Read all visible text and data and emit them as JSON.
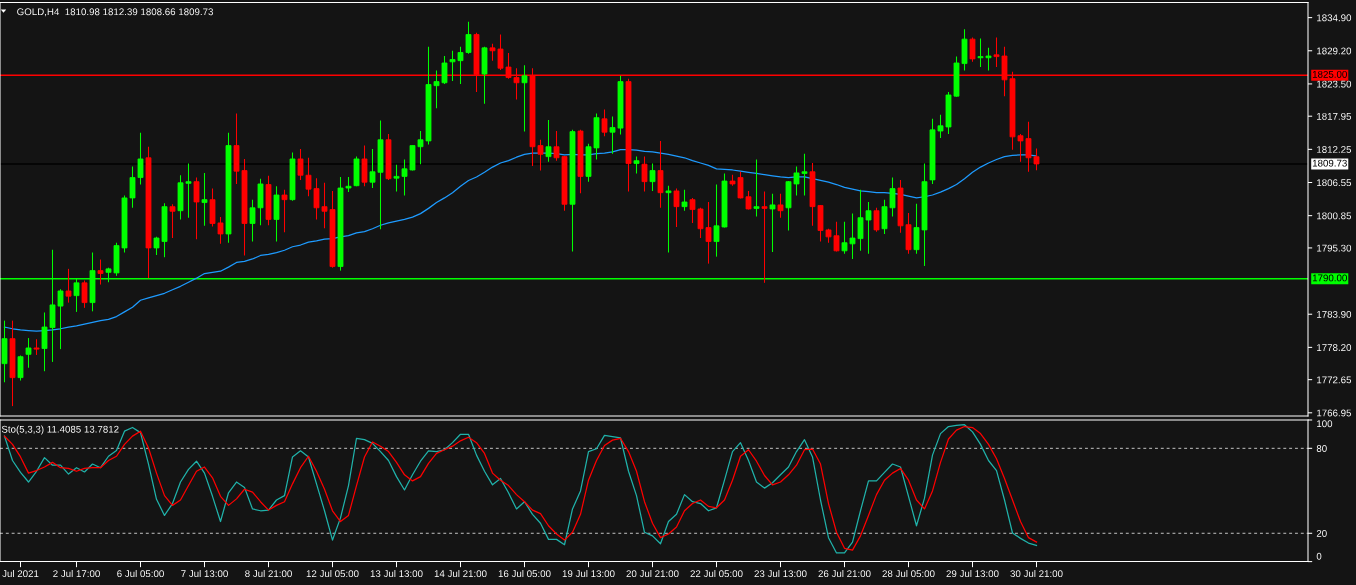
{
  "chart_data": [
    {
      "type": "candlestick",
      "title": "GOLD,H4  1810.98 1812.39 1808.66 1809.73",
      "categories": [
        null,
        null,
        null,
        null,
        null,
        null,
        null,
        null,
        null,
        null,
        null,
        null,
        null,
        null,
        null,
        null,
        null,
        null,
        null,
        null,
        null,
        null,
        null,
        null,
        null,
        null,
        null,
        null,
        null,
        null,
        null,
        null,
        null,
        null,
        null,
        null,
        null,
        null,
        null,
        null,
        null,
        null,
        null,
        null,
        null,
        null,
        null,
        null,
        null,
        null,
        null,
        null,
        null,
        null,
        null,
        null,
        null,
        null,
        null,
        null,
        null,
        null,
        null,
        null,
        null,
        null,
        null,
        null,
        null,
        null,
        null,
        null,
        null,
        null,
        null,
        null,
        null,
        null,
        null,
        null,
        null,
        null,
        null,
        null,
        null,
        null,
        null,
        null,
        null,
        null,
        null,
        null,
        null,
        null,
        null,
        null,
        null,
        null,
        null,
        null,
        null,
        null,
        null,
        null,
        null,
        null,
        null,
        null,
        null,
        null,
        null,
        null,
        null,
        null,
        null,
        null,
        null,
        null,
        null,
        null,
        null,
        null,
        null,
        null,
        null,
        null,
        null,
        null,
        null,
        null
      ],
      "ohlc": [
        [
          1775.4,
          1782.8,
          1772.2,
          1779.7
        ],
        [
          1779.7,
          1782.8,
          1768.1,
          1773.0
        ],
        [
          1773.0,
          1776.8,
          1772.5,
          1776.6
        ],
        [
          1777.0,
          1779.8,
          1774.7,
          1778.1
        ],
        [
          1778.1,
          1779.6,
          1776.9,
          1777.9
        ],
        [
          1778.0,
          1784.2,
          1774.1,
          1781.7
        ],
        [
          1781.6,
          1795.0,
          1775.7,
          1785.5
        ],
        [
          1785.3,
          1788.2,
          1777.9,
          1787.9
        ],
        [
          1787.9,
          1791.7,
          1785.9,
          1787.0
        ],
        [
          1787.1,
          1790.1,
          1784.3,
          1789.3
        ],
        [
          1789.3,
          1789.7,
          1785.0,
          1785.9
        ],
        [
          1785.9,
          1794.5,
          1784.4,
          1791.4
        ],
        [
          1791.4,
          1793.3,
          1789.0,
          1790.9
        ],
        [
          1791.1,
          1791.9,
          1789.4,
          1791.7
        ],
        [
          1791.0,
          1796.2,
          1790.5,
          1795.7
        ],
        [
          1795.3,
          1804.3,
          1794.5,
          1803.9
        ],
        [
          1803.9,
          1809.3,
          1802.2,
          1807.4
        ],
        [
          1807.4,
          1815.1,
          1806.2,
          1810.6
        ],
        [
          1810.8,
          1812.7,
          1790.1,
          1795.3
        ],
        [
          1795.3,
          1797.2,
          1794.1,
          1797.0
        ],
        [
          1796.4,
          1803.0,
          1793.7,
          1802.4
        ],
        [
          1802.4,
          1802.8,
          1797.0,
          1801.6
        ],
        [
          1801.7,
          1807.8,
          1800.2,
          1806.5
        ],
        [
          1806.4,
          1809.8,
          1800.5,
          1806.7
        ],
        [
          1806.7,
          1807.4,
          1796.8,
          1803.2
        ],
        [
          1803.1,
          1808.2,
          1799.1,
          1803.6
        ],
        [
          1803.6,
          1805.5,
          1799.0,
          1799.5
        ],
        [
          1799.6,
          1800.6,
          1796.0,
          1797.7
        ],
        [
          1797.7,
          1815.1,
          1796.2,
          1812.9
        ],
        [
          1812.9,
          1818.4,
          1806.3,
          1808.5
        ],
        [
          1808.6,
          1810.6,
          1794.0,
          1799.5
        ],
        [
          1799.5,
          1803.6,
          1796.4,
          1802.2
        ],
        [
          1802.2,
          1807.2,
          1799.2,
          1806.3
        ],
        [
          1806.2,
          1807.7,
          1799.2,
          1800.2
        ],
        [
          1800.2,
          1805.9,
          1796.4,
          1804.4
        ],
        [
          1804.4,
          1805.3,
          1798.0,
          1803.6
        ],
        [
          1803.6,
          1811.7,
          1803.4,
          1810.6
        ],
        [
          1810.6,
          1812.3,
          1807.0,
          1807.8
        ],
        [
          1807.8,
          1810.8,
          1804.2,
          1805.4
        ],
        [
          1805.5,
          1807.3,
          1800.2,
          1802.2
        ],
        [
          1802.4,
          1806.5,
          1798.7,
          1801.6
        ],
        [
          1801.9,
          1805.1,
          1791.9,
          1792.1
        ],
        [
          1792.1,
          1807.5,
          1791.4,
          1805.6
        ],
        [
          1805.6,
          1807.5,
          1804.9,
          1805.9
        ],
        [
          1806.0,
          1811.0,
          1805.9,
          1810.6
        ],
        [
          1810.6,
          1812.9,
          1805.9,
          1806.6
        ],
        [
          1806.6,
          1812.3,
          1805.6,
          1808.4
        ],
        [
          1808.3,
          1817.2,
          1798.5,
          1813.9
        ],
        [
          1813.9,
          1814.9,
          1807.0,
          1807.2
        ],
        [
          1807.3,
          1809.6,
          1805.0,
          1807.6
        ],
        [
          1807.6,
          1810.5,
          1804.3,
          1808.9
        ],
        [
          1808.7,
          1812.9,
          1808.6,
          1812.9
        ],
        [
          1812.7,
          1815.4,
          1809.7,
          1813.9
        ],
        [
          1813.7,
          1829.9,
          1813.1,
          1823.4
        ],
        [
          1823.2,
          1825.8,
          1819.3,
          1823.9
        ],
        [
          1823.7,
          1828.3,
          1823.5,
          1827.1
        ],
        [
          1827.3,
          1829.2,
          1824.0,
          1827.7
        ],
        [
          1827.5,
          1829.9,
          1823.5,
          1828.9
        ],
        [
          1828.9,
          1834.2,
          1828.7,
          1832.0
        ],
        [
          1832.0,
          1832.3,
          1822.1,
          1825.1
        ],
        [
          1825.2,
          1829.9,
          1820.1,
          1829.7
        ],
        [
          1829.7,
          1830.4,
          1827.5,
          1829.2
        ],
        [
          1829.5,
          1832.0,
          1825.9,
          1826.2
        ],
        [
          1826.4,
          1828.8,
          1824.4,
          1824.6
        ],
        [
          1824.6,
          1826.2,
          1820.8,
          1823.7
        ],
        [
          1823.7,
          1826.7,
          1815.3,
          1824.9
        ],
        [
          1824.9,
          1826.2,
          1809.4,
          1812.7
        ],
        [
          1812.9,
          1813.9,
          1808.6,
          1811.4
        ],
        [
          1811.0,
          1817.3,
          1810.1,
          1812.7
        ],
        [
          1812.7,
          1815.4,
          1810.3,
          1810.8
        ],
        [
          1811.0,
          1811.1,
          1801.7,
          1802.8
        ],
        [
          1802.8,
          1815.6,
          1794.7,
          1815.3
        ],
        [
          1815.4,
          1815.6,
          1804.7,
          1807.6
        ],
        [
          1807.6,
          1813.2,
          1806.7,
          1812.7
        ],
        [
          1812.5,
          1818.4,
          1810.5,
          1817.7
        ],
        [
          1817.5,
          1819.1,
          1814.5,
          1815.2
        ],
        [
          1815.2,
          1817.9,
          1811.5,
          1816.0
        ],
        [
          1815.9,
          1824.9,
          1814.8,
          1823.9
        ],
        [
          1823.9,
          1824.4,
          1805.0,
          1809.8
        ],
        [
          1809.8,
          1811.0,
          1808.1,
          1810.3
        ],
        [
          1809.7,
          1811.0,
          1805.0,
          1806.7
        ],
        [
          1806.7,
          1809.8,
          1805.1,
          1808.6
        ],
        [
          1808.6,
          1813.7,
          1802.2,
          1804.8
        ],
        [
          1804.8,
          1806.0,
          1794.5,
          1805.1
        ],
        [
          1805.1,
          1805.5,
          1798.9,
          1802.4
        ],
        [
          1802.4,
          1805.3,
          1801.7,
          1803.2
        ],
        [
          1803.6,
          1803.9,
          1799.6,
          1801.9
        ],
        [
          1802.0,
          1802.2,
          1797.0,
          1798.6
        ],
        [
          1798.8,
          1803.2,
          1792.6,
          1796.4
        ],
        [
          1796.4,
          1806.2,
          1793.8,
          1799.1
        ],
        [
          1798.9,
          1808.1,
          1798.8,
          1806.8
        ],
        [
          1806.8,
          1807.9,
          1806.0,
          1806.3
        ],
        [
          1807.4,
          1808.4,
          1803.8,
          1803.9
        ],
        [
          1804.1,
          1805.1,
          1801.9,
          1802.0
        ],
        [
          1802.1,
          1810.5,
          1800.7,
          1802.4
        ],
        [
          1802.4,
          1805.0,
          1789.3,
          1802.1
        ],
        [
          1802.0,
          1804.6,
          1794.6,
          1802.7
        ],
        [
          1802.7,
          1804.6,
          1800.5,
          1801.7
        ],
        [
          1802.2,
          1806.8,
          1798.3,
          1806.7
        ],
        [
          1806.3,
          1809.3,
          1804.3,
          1808.2
        ],
        [
          1808.1,
          1811.5,
          1804.3,
          1808.4
        ],
        [
          1808.4,
          1809.9,
          1799.1,
          1802.4
        ],
        [
          1802.6,
          1802.7,
          1796.4,
          1798.3
        ],
        [
          1798.4,
          1798.6,
          1796.2,
          1797.2
        ],
        [
          1797.4,
          1799.8,
          1794.7,
          1794.8
        ],
        [
          1794.8,
          1799.8,
          1794.3,
          1796.2
        ],
        [
          1796.0,
          1801.2,
          1793.4,
          1797.0
        ],
        [
          1796.9,
          1805.3,
          1794.8,
          1800.5
        ],
        [
          1800.1,
          1803.2,
          1794.3,
          1801.7
        ],
        [
          1801.7,
          1802.2,
          1798.1,
          1798.4
        ],
        [
          1798.6,
          1803.6,
          1797.7,
          1802.4
        ],
        [
          1802.2,
          1807.4,
          1800.7,
          1805.5
        ],
        [
          1805.6,
          1807.0,
          1797.9,
          1799.1
        ],
        [
          1799.3,
          1801.3,
          1794.3,
          1795.0
        ],
        [
          1795.0,
          1802.9,
          1794.3,
          1798.8
        ],
        [
          1798.4,
          1809.8,
          1792.2,
          1806.7
        ],
        [
          1807.0,
          1817.5,
          1806.3,
          1815.6
        ],
        [
          1815.4,
          1818.2,
          1814.2,
          1816.3
        ],
        [
          1816.1,
          1822.1,
          1814.9,
          1821.6
        ],
        [
          1821.4,
          1828.2,
          1821.3,
          1827.1
        ],
        [
          1827.0,
          1832.9,
          1825.8,
          1831.2
        ],
        [
          1831.2,
          1831.5,
          1827.3,
          1827.8
        ],
        [
          1828.0,
          1831.3,
          1826.4,
          1828.2
        ],
        [
          1828.0,
          1829.7,
          1825.8,
          1828.3
        ],
        [
          1828.5,
          1831.5,
          1826.4,
          1828.2
        ],
        [
          1828.3,
          1829.9,
          1821.4,
          1824.2
        ],
        [
          1824.4,
          1825.6,
          1812.2,
          1814.4
        ],
        [
          1814.6,
          1814.9,
          1810.1,
          1813.7
        ],
        [
          1814.1,
          1817.0,
          1808.4,
          1810.8
        ],
        [
          1810.98,
          1812.39,
          1808.66,
          1809.73
        ]
      ],
      "colors": [
        "#00ff00",
        "#ff0000",
        "#00ff00",
        "#00ff00",
        "#ff0000",
        "#00ff00",
        "#00ff00",
        "#00ff00",
        "#ff0000",
        "#00ff00",
        "#ff0000",
        "#00ff00",
        "#ff0000",
        "#00ff00",
        "#00ff00",
        "#00ff00",
        "#00ff00",
        "#00ff00",
        "#ff0000",
        "#00ff00",
        "#00ff00",
        "#ff0000",
        "#00ff00",
        "#00ff00",
        "#ff0000",
        "#00ff00",
        "#ff0000",
        "#ff0000",
        "#00ff00",
        "#ff0000",
        "#ff0000",
        "#00ff00",
        "#00ff00",
        "#ff0000",
        "#00ff00",
        "#ff0000",
        "#00ff00",
        "#ff0000",
        "#ff0000",
        "#ff0000",
        "#ff0000",
        "#ff0000",
        "#00ff00",
        "#00ff00",
        "#00ff00",
        "#ff0000",
        "#00ff00",
        "#00ff00",
        "#ff0000",
        "#00ff00",
        "#00ff00",
        "#00ff00",
        "#00ff00",
        "#00ff00",
        "#00ff00",
        "#00ff00",
        "#00ff00",
        "#00ff00",
        "#00ff00",
        "#ff0000",
        "#00ff00",
        "#ff0000",
        "#ff0000",
        "#ff0000",
        "#ff0000",
        "#00ff00",
        "#ff0000",
        "#ff0000",
        "#00ff00",
        "#ff0000",
        "#ff0000",
        "#00ff00",
        "#ff0000",
        "#00ff00",
        "#00ff00",
        "#ff0000",
        "#00ff00",
        "#00ff00",
        "#ff0000",
        "#00ff00",
        "#ff0000",
        "#00ff00",
        "#ff0000",
        "#00ff00",
        "#ff0000",
        "#00ff00",
        "#ff0000",
        "#ff0000",
        "#ff0000",
        "#00ff00",
        "#00ff00",
        "#ff0000",
        "#ff0000",
        "#ff0000",
        "#00ff00",
        "#ff0000",
        "#00ff00",
        "#ff0000",
        "#00ff00",
        "#00ff00",
        "#00ff00",
        "#ff0000",
        "#ff0000",
        "#ff0000",
        "#ff0000",
        "#00ff00",
        "#00ff00",
        "#00ff00",
        "#00ff00",
        "#ff0000",
        "#00ff00",
        "#00ff00",
        "#ff0000",
        "#ff0000",
        "#00ff00",
        "#00ff00",
        "#00ff00",
        "#00ff00",
        "#00ff00",
        "#00ff00",
        "#00ff00",
        "#ff0000",
        "#00ff00",
        "#00ff00",
        "#ff0000",
        "#ff0000",
        "#ff0000",
        "#ff0000",
        "#ff0000",
        "#ff0000"
      ],
      "series": [
        {
          "type": "line",
          "color": "#1e9bff",
          "values": [
            1781.7,
            1781.4,
            1781.2,
            1781.1,
            1781.0,
            1781.1,
            1781.2,
            1781.4,
            1781.7,
            1781.9,
            1782.2,
            1782.5,
            1782.8,
            1783.0,
            1783.5,
            1784.3,
            1785.1,
            1786.3,
            1786.7,
            1787.1,
            1787.5,
            1788.1,
            1788.7,
            1789.4,
            1790.1,
            1790.9,
            1791.1,
            1791.3,
            1792.0,
            1792.8,
            1793.0,
            1793.4,
            1794.0,
            1794.2,
            1794.5,
            1794.9,
            1795.5,
            1795.8,
            1796.3,
            1796.5,
            1796.8,
            1796.9,
            1797.2,
            1797.4,
            1797.9,
            1798.1,
            1798.6,
            1799.2,
            1799.6,
            1799.9,
            1800.2,
            1800.6,
            1801.2,
            1802.1,
            1803.1,
            1803.9,
            1804.8,
            1805.9,
            1806.9,
            1807.5,
            1808.3,
            1809.2,
            1809.9,
            1810.3,
            1810.9,
            1811.4,
            1811.6,
            1811.6,
            1811.6,
            1811.5,
            1811.3,
            1811.4,
            1811.3,
            1811.3,
            1811.5,
            1811.6,
            1811.8,
            1812.2,
            1812.2,
            1812.1,
            1811.9,
            1811.8,
            1811.6,
            1811.4,
            1811.1,
            1810.8,
            1810.3,
            1809.9,
            1809.5,
            1808.9,
            1808.8,
            1808.7,
            1808.5,
            1808.3,
            1808.1,
            1807.9,
            1807.7,
            1807.5,
            1807.4,
            1807.5,
            1807.5,
            1807.2,
            1806.9,
            1806.6,
            1806.2,
            1805.7,
            1805.4,
            1805.1,
            1805.0,
            1804.8,
            1804.8,
            1804.7,
            1804.5,
            1804.2,
            1803.9,
            1804.1,
            1804.4,
            1804.9,
            1805.5,
            1806.2,
            1807.2,
            1808.3,
            1809.2,
            1809.9,
            1810.5,
            1811.0,
            1811.2,
            1811.3,
            1811.3,
            1811.1
          ]
        }
      ],
      "ylim": [
        1766.4,
        1837.5
      ],
      "yticks": [
        {
          "value": 1834.9,
          "label": "1834.90"
        },
        {
          "value": 1829.2,
          "label": "1829.20"
        },
        {
          "value": 1823.5,
          "label": "1823.50"
        },
        {
          "value": 1817.95,
          "label": "1817.95"
        },
        {
          "value": 1812.25,
          "label": "1812.25"
        },
        {
          "value": 1806.55,
          "label": "1806.55"
        },
        {
          "value": 1800.85,
          "label": "1800.85"
        },
        {
          "value": 1795.3,
          "label": "1795.30"
        },
        {
          "value": 1783.9,
          "label": "1783.90"
        },
        {
          "value": 1778.2,
          "label": "1778.20"
        },
        {
          "value": 1772.65,
          "label": "1772.65"
        },
        {
          "value": 1766.95,
          "label": "1766.95"
        }
      ],
      "ref_lines": [
        {
          "axis": "y",
          "value": 1825,
          "label": "1825.00",
          "color": "#ff0000"
        },
        {
          "axis": "y",
          "value": 1790,
          "label": "1790.00",
          "color": "#00ff00"
        },
        {
          "axis": "y",
          "value": 1809.73,
          "label": "1809.73",
          "color": "#000000"
        }
      ]
    },
    {
      "type": "line",
      "title": "Sto(5,3,3) 11.4085 13.7812",
      "categories": [
        null,
        null,
        "Jul 2021",
        null,
        null,
        null,
        null,
        null,
        null,
        "2 Jul 17:00",
        null,
        null,
        null,
        null,
        null,
        null,
        null,
        "6 Jul 05:00",
        null,
        null,
        null,
        null,
        null,
        null,
        null,
        "7 Jul 13:00",
        null,
        null,
        null,
        null,
        null,
        null,
        null,
        "8 Jul 21:00",
        null,
        null,
        null,
        null,
        null,
        null,
        null,
        "12 Jul 05:00",
        null,
        null,
        null,
        null,
        null,
        null,
        null,
        "13 Jul 13:00",
        null,
        null,
        null,
        null,
        null,
        null,
        null,
        "14 Jul 21:00",
        null,
        null,
        null,
        null,
        null,
        null,
        null,
        "16 Jul 05:00",
        null,
        null,
        null,
        null,
        null,
        null,
        null,
        "19 Jul 13:00",
        null,
        null,
        null,
        null,
        null,
        null,
        null,
        "20 Jul 21:00",
        null,
        null,
        null,
        null,
        null,
        null,
        null,
        "22 Jul 05:00",
        null,
        null,
        null,
        null,
        null,
        null,
        null,
        "23 Jul 13:00",
        null,
        null,
        null,
        null,
        null,
        null,
        null,
        "26 Jul 21:00",
        null,
        null,
        null,
        null,
        null,
        null,
        null,
        "28 Jul 05:00",
        null,
        null,
        null,
        null,
        null,
        null,
        null,
        "29 Jul 13:00",
        null,
        null,
        null,
        null,
        null,
        null,
        null,
        "30 Jul 21:00"
      ],
      "series": [
        {
          "color": "#20b2aa",
          "values": [
            88.6,
            71.4,
            63.0,
            56.2,
            63.8,
            73.4,
            68.1,
            68.1,
            61.8,
            66.3,
            63.3,
            68.9,
            66.3,
            74.4,
            78.5,
            92.1,
            94.7,
            91.1,
            68.9,
            44.0,
            32.6,
            41.0,
            56.2,
            65.1,
            70.9,
            62.5,
            46.1,
            28.3,
            48.6,
            56.2,
            52.4,
            37.2,
            35.9,
            36.4,
            43.5,
            46.6,
            73.9,
            78.2,
            73.9,
            54.9,
            35.9,
            15.2,
            30.9,
            53.7,
            87.1,
            86.1,
            83.5,
            77.7,
            71.4,
            60.0,
            50.6,
            61.3,
            70.9,
            78.2,
            77.7,
            79.0,
            84.0,
            89.9,
            89.9,
            75.2,
            63.8,
            54.2,
            58.7,
            48.6,
            37.2,
            42.3,
            33.4,
            27.1,
            15.7,
            15.7,
            11.9,
            37.2,
            49.9,
            77.7,
            79.7,
            89.1,
            88.3,
            87.3,
            63.8,
            46.6,
            20.7,
            18.2,
            12.6,
            28.3,
            33.4,
            47.3,
            42.3,
            41.0,
            35.9,
            38.0,
            57.5,
            77.7,
            84.0,
            71.4,
            56.2,
            51.9,
            55.7,
            61.3,
            66.8,
            77.7,
            86.1,
            73.9,
            43.5,
            16.9,
            6.1,
            6.1,
            13.7,
            35.9,
            57.0,
            57.0,
            63.0,
            68.9,
            66.8,
            46.1,
            25.3,
            44.8,
            75.2,
            90.4,
            95.4,
            96.2,
            96.7,
            91.6,
            82.8,
            71.4,
            64.3,
            43.5,
            20.2,
            16.4,
            13.1,
            11.4085
          ]
        },
        {
          "color": "#ff0000",
          "values": [
            88.6,
            82.8,
            73.9,
            62.5,
            64.3,
            66.8,
            70.1,
            66.3,
            65.8,
            63.8,
            65.8,
            66.3,
            66.3,
            71.4,
            74.4,
            82.8,
            88.6,
            92.1,
            80.2,
            62.5,
            46.6,
            39.7,
            43.5,
            53.7,
            63.8,
            66.8,
            59.2,
            46.1,
            39.7,
            44.3,
            51.1,
            49.1,
            42.3,
            36.4,
            39.7,
            42.3,
            54.9,
            66.3,
            74.4,
            63.8,
            51.1,
            35.9,
            28.3,
            32.6,
            53.7,
            73.9,
            84.5,
            81.5,
            77.7,
            70.1,
            61.3,
            57.0,
            60.0,
            69.4,
            76.4,
            79.0,
            81.5,
            85.3,
            87.8,
            84.0,
            76.4,
            62.5,
            57.5,
            53.7,
            47.3,
            42.3,
            36.4,
            33.9,
            25.3,
            19.5,
            15.2,
            20.7,
            33.4,
            57.5,
            71.4,
            82.0,
            85.8,
            87.1,
            77.7,
            63.8,
            42.3,
            27.1,
            16.9,
            19.5,
            24.5,
            35.9,
            41.0,
            43.5,
            39.0,
            38.0,
            43.5,
            57.5,
            74.4,
            79.0,
            70.9,
            60.8,
            54.2,
            56.2,
            61.3,
            68.1,
            79.0,
            79.5,
            68.9,
            41.0,
            20.7,
            9.4,
            8.1,
            18.2,
            32.6,
            47.3,
            57.5,
            62.5,
            65.8,
            57.5,
            43.5,
            37.2,
            49.9,
            70.1,
            86.6,
            92.9,
            95.4,
            94.7,
            90.4,
            82.8,
            72.6,
            58.7,
            43.5,
            28.3,
            16.9,
            13.7812
          ]
        }
      ],
      "ylim": [
        0,
        100
      ],
      "yticks": [
        0,
        20,
        80,
        100
      ],
      "ref_lines": [
        {
          "axis": "y",
          "value": 80,
          "color": "#c8c8c8",
          "line_style": "dashed"
        },
        {
          "axis": "y",
          "value": 20,
          "color": "#c8c8c8",
          "line_style": "dashed"
        }
      ]
    }
  ]
}
